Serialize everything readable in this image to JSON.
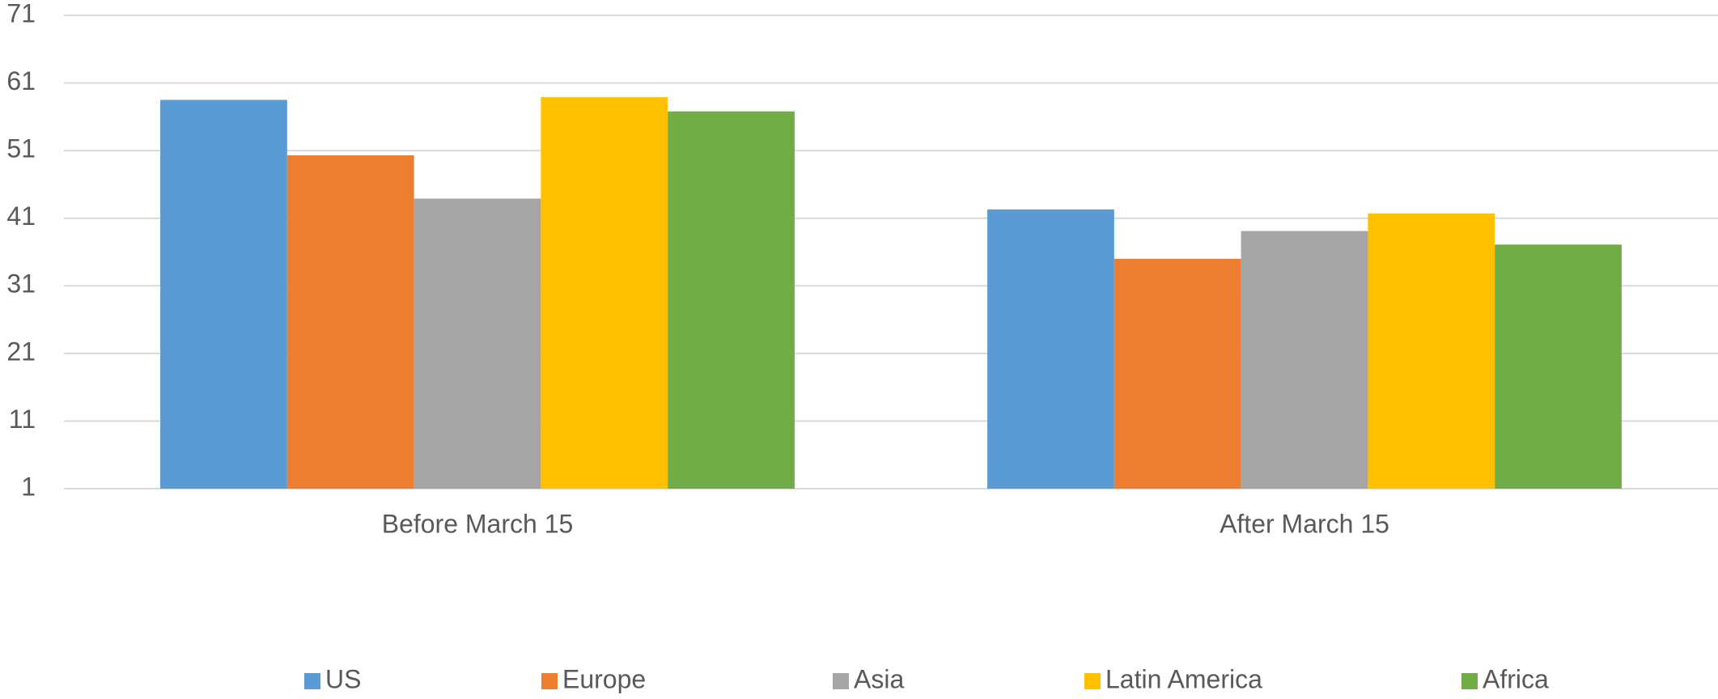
{
  "chart_data": {
    "type": "bar",
    "categories": [
      "Before March 15",
      "After March 15"
    ],
    "series": [
      {
        "name": "US",
        "color": "#5b9bd5",
        "values": [
          58.5,
          42.3
        ]
      },
      {
        "name": "Europe",
        "color": "#ed7d31",
        "values": [
          50.3,
          35.0
        ]
      },
      {
        "name": "Asia",
        "color": "#a5a5a5",
        "values": [
          43.9,
          39.1
        ]
      },
      {
        "name": "Latin America",
        "color": "#ffc000",
        "values": [
          58.9,
          41.7
        ]
      },
      {
        "name": "Africa",
        "color": "#70ad47",
        "values": [
          56.8,
          37.1
        ]
      }
    ],
    "ylim": [
      1,
      71
    ],
    "yticks": [
      1,
      11,
      21,
      31,
      41,
      51,
      61,
      71
    ],
    "grid": true,
    "legend": "bottom"
  }
}
